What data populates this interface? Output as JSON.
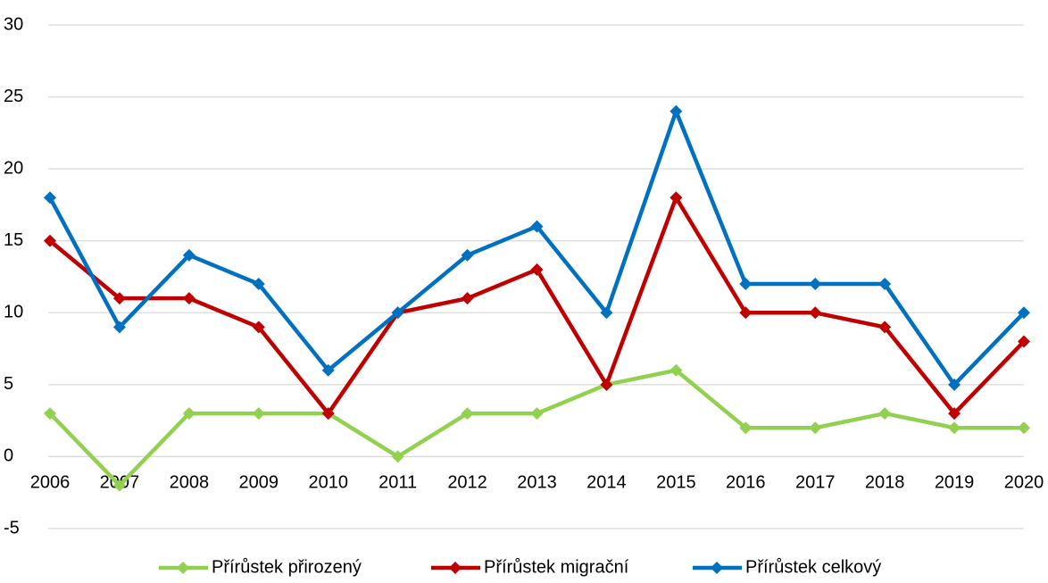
{
  "chart_data": {
    "type": "line",
    "categories": [
      "2006",
      "2007",
      "2008",
      "2009",
      "2010",
      "2011",
      "2012",
      "2013",
      "2014",
      "2015",
      "2016",
      "2017",
      "2018",
      "2019",
      "2020"
    ],
    "series": [
      {
        "name": "Přírůstek přirozený",
        "color": "#92d050",
        "values": [
          3,
          -2,
          3,
          3,
          3,
          0,
          3,
          3,
          5,
          6,
          2,
          2,
          3,
          2,
          2
        ]
      },
      {
        "name": "Přírůstek migrační",
        "color": "#c00000",
        "values": [
          15,
          11,
          11,
          9,
          3,
          10,
          11,
          13,
          5,
          18,
          10,
          10,
          9,
          3,
          8
        ]
      },
      {
        "name": "Přírůstek celkový",
        "color": "#0070c0",
        "values": [
          18,
          9,
          14,
          12,
          6,
          10,
          14,
          16,
          10,
          24,
          12,
          12,
          12,
          5,
          10
        ]
      }
    ],
    "ylim": [
      -5,
      30
    ],
    "yticks": [
      -5,
      0,
      5,
      10,
      15,
      20,
      25,
      30
    ],
    "grid": true,
    "legend": "bottom"
  }
}
